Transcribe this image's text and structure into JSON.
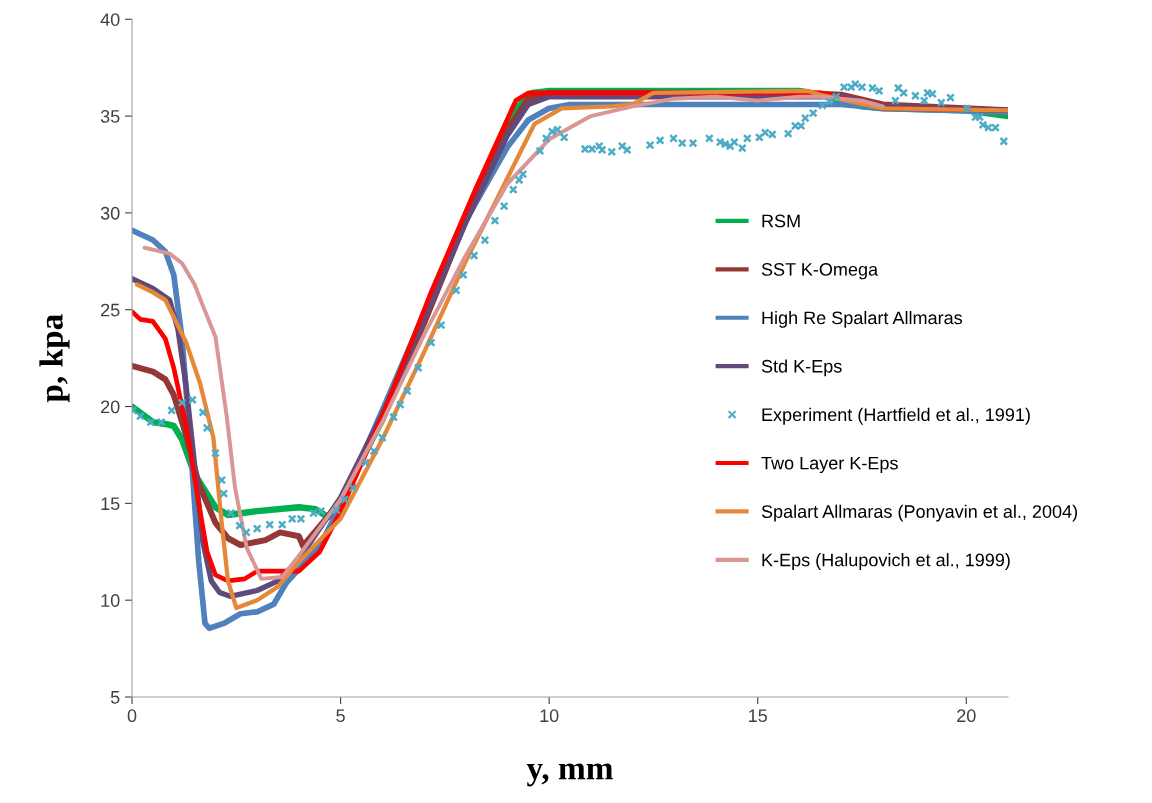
{
  "chart_data": {
    "type": "line",
    "xlabel": "y, mm",
    "ylabel": "p, kpa",
    "xlim": [
      0,
      21
    ],
    "ylim": [
      5,
      40
    ],
    "xticks": [
      0,
      5,
      10,
      15,
      20
    ],
    "yticks": [
      5,
      10,
      15,
      20,
      25,
      30,
      35,
      40
    ],
    "grid": false,
    "legend": "right",
    "marker": "none",
    "line_style": "solid",
    "series": [
      {
        "name": "RSM",
        "color": "#00b050",
        "x": [
          0,
          0.5,
          0.8,
          1.0,
          1.2,
          1.5,
          2.0,
          2.3,
          3.0,
          4.0,
          4.4,
          4.7,
          5,
          6,
          7,
          8,
          8.5,
          9,
          9.3,
          9.6,
          10,
          16,
          16.5,
          17.5,
          18,
          20,
          21
        ],
        "values": [
          20,
          19.2,
          19.1,
          19.0,
          18.3,
          16.5,
          14.8,
          14.4,
          14.6,
          14.8,
          14.7,
          14.3,
          15.2,
          19.3,
          24.5,
          29.8,
          32.3,
          34.6,
          35.6,
          36.2,
          36.3,
          36.3,
          36.1,
          35.5,
          35.4,
          35.3,
          35.0
        ]
      },
      {
        "name": "SST K-Omega",
        "color": "#953735",
        "x": [
          0,
          0.5,
          0.8,
          1.0,
          1.3,
          1.6,
          2.0,
          2.3,
          2.6,
          3.2,
          3.55,
          4.0,
          4.1,
          5,
          6,
          7,
          8,
          9,
          9.5,
          10,
          16,
          17,
          18,
          21
        ],
        "values": [
          22.1,
          21.8,
          21.4,
          20.6,
          18.5,
          16,
          14,
          13.2,
          12.85,
          13.1,
          13.5,
          13.3,
          12.8,
          15.1,
          19.4,
          24.3,
          29.6,
          34.3,
          35.9,
          36.2,
          36.2,
          36.1,
          35.6,
          35.3
        ]
      },
      {
        "name": "High Re Spalart Allmaras",
        "color": "#4f81bd",
        "x": [
          0,
          0.5,
          0.8,
          1.0,
          1.2,
          1.4,
          1.6,
          1.75,
          1.85,
          2.2,
          2.6,
          3.0,
          3.4,
          3.7,
          4.5,
          5,
          6,
          7,
          8,
          9,
          9.5,
          10,
          10.5,
          17,
          18,
          21
        ],
        "values": [
          29.1,
          28.6,
          28.0,
          26.8,
          23.5,
          18,
          12,
          8.8,
          8.55,
          8.8,
          9.3,
          9.4,
          9.8,
          10.9,
          12.8,
          14.9,
          19.8,
          24.8,
          29.6,
          33.4,
          34.8,
          35.4,
          35.6,
          35.6,
          35.4,
          35.2
        ]
      },
      {
        "name": "Std K-Eps",
        "color": "#604a7b",
        "x": [
          0,
          0.5,
          0.9,
          1.1,
          1.3,
          1.5,
          1.7,
          1.9,
          2.1,
          2.35,
          3.0,
          3.5,
          4.0,
          5,
          6,
          7,
          8,
          9,
          9.5,
          10,
          17,
          18,
          21
        ],
        "values": [
          26.6,
          26.1,
          25.5,
          24,
          21,
          17,
          13,
          11,
          10.4,
          10.2,
          10.5,
          11,
          12.1,
          15.3,
          19.6,
          24.5,
          29.5,
          34,
          35.6,
          36.0,
          36.0,
          35.5,
          35.3
        ]
      },
      {
        "name": "Experiment (Hartfield et al., 1991)",
        "type": "scatter",
        "marker": "cross",
        "color": "#4bacc6",
        "x": [
          0.02,
          0.2,
          0.45,
          0.7,
          0.95,
          1.2,
          1.45,
          1.7,
          1.8,
          2.0,
          2.15,
          2.2,
          2.37,
          2.58,
          2.74,
          3.0,
          3.3,
          3.6,
          3.84,
          4.05,
          4.35,
          4.53,
          4.9,
          5.1,
          5.3,
          5.6,
          5.8,
          6.0,
          6.27,
          6.43,
          6.6,
          6.86,
          7.17,
          7.41,
          7.77,
          7.94,
          8.2,
          8.46,
          8.7,
          8.92,
          9.14,
          9.28,
          9.37,
          9.78,
          9.93,
          10.07,
          10.2,
          10.36,
          10.86,
          11.03,
          11.2,
          11.27,
          11.5,
          11.75,
          11.87,
          12.42,
          12.66,
          12.98,
          13.19,
          13.45,
          13.84,
          14.1,
          14.22,
          14.34,
          14.44,
          14.63,
          14.75,
          15.04,
          15.18,
          15.35,
          15.73,
          15.9,
          16.04,
          16.14,
          16.33,
          16.55,
          16.72,
          16.88,
          17.07,
          17.24,
          17.34,
          17.5,
          17.75,
          17.91,
          18.3,
          18.37,
          18.5,
          18.78,
          18.99,
          19.07,
          19.19,
          19.4,
          19.62,
          20.02,
          20.22,
          20.32,
          20.4,
          20.53,
          20.7,
          20.9
        ],
        "values": [
          19.8,
          19.5,
          19.2,
          19.2,
          19.8,
          20.2,
          20.35,
          19.7,
          18.9,
          17.6,
          16.2,
          15.5,
          14.5,
          13.85,
          13.5,
          13.7,
          13.9,
          13.9,
          14.2,
          14.2,
          14.5,
          14.6,
          14.65,
          15.2,
          15.8,
          17.1,
          17.7,
          18.4,
          19.46,
          20.1,
          20.8,
          22.0,
          23.3,
          24.2,
          26.0,
          26.8,
          27.8,
          28.6,
          29.6,
          30.35,
          31.2,
          31.7,
          32.0,
          33.2,
          33.85,
          34.2,
          34.3,
          33.9,
          33.3,
          33.3,
          33.45,
          33.25,
          33.15,
          33.45,
          33.25,
          33.5,
          33.75,
          33.85,
          33.6,
          33.6,
          33.85,
          33.65,
          33.55,
          33.45,
          33.65,
          33.35,
          33.85,
          33.9,
          34.15,
          34.05,
          34.1,
          34.5,
          34.5,
          34.9,
          35.15,
          35.55,
          35.75,
          36.0,
          36.5,
          36.5,
          36.65,
          36.5,
          36.45,
          36.3,
          35.8,
          36.45,
          36.2,
          36.05,
          35.8,
          36.2,
          36.15,
          35.7,
          35.95,
          35.4,
          34.95,
          34.95,
          34.55,
          34.4,
          34.4,
          33.7
        ]
      },
      {
        "name": "Two Layer K-Eps",
        "color": "#ff0000",
        "x": [
          0,
          0.2,
          0.5,
          0.8,
          1.0,
          1.3,
          1.6,
          1.8,
          2.0,
          2.3,
          2.7,
          3.0,
          4.0,
          4.5,
          5,
          6,
          7.15,
          8.25,
          9.2,
          9.5,
          10,
          16.5,
          18,
          21
        ],
        "values": [
          24.9,
          24.5,
          24.4,
          23.5,
          22,
          19,
          15,
          12.5,
          11.3,
          11.0,
          11.1,
          11.5,
          11.5,
          12.5,
          14.6,
          19.5,
          25.8,
          31.3,
          35.8,
          36.2,
          36.2,
          36.2,
          35.4,
          35.3
        ]
      },
      {
        "name": "Spalart Allmaras (Ponyavin et al., 2004)",
        "color": "#e6883a",
        "x": [
          0.12,
          0.5,
          0.8,
          1.3,
          1.63,
          1.95,
          2.15,
          2.3,
          2.5,
          3.0,
          3.5,
          4.0,
          5,
          6,
          7,
          8,
          9,
          9.65,
          10.3,
          11.5,
          12,
          12.5,
          16.2,
          16.5,
          18,
          21
        ],
        "values": [
          26.3,
          25.9,
          25.5,
          23.3,
          21.2,
          18.4,
          14,
          11,
          9.6,
          10.0,
          10.7,
          12,
          14.2,
          18.3,
          22.8,
          27.5,
          31.8,
          34.6,
          35.4,
          35.5,
          35.6,
          36.2,
          36.3,
          36.1,
          35.4,
          35.3
        ]
      },
      {
        "name": "K-Eps (Halupovich et al., 1999)",
        "color": "#d99694",
        "x": [
          0.3,
          0.7,
          0.9,
          1.2,
          1.5,
          1.7,
          2.0,
          2.27,
          2.47,
          2.75,
          3.1,
          3.6,
          4.0,
          5,
          6,
          7,
          8,
          9,
          10,
          11,
          12,
          13,
          14,
          15,
          16,
          16.5,
          17.5,
          18
        ],
        "values": [
          28.2,
          28.0,
          27.9,
          27.4,
          26.3,
          25.2,
          23.6,
          19.5,
          15.8,
          12.7,
          11.1,
          11.2,
          12.3,
          15.2,
          19.2,
          23.7,
          27.8,
          31.5,
          33.8,
          35.0,
          35.5,
          35.9,
          36.0,
          35.8,
          36.0,
          36.0,
          35.8,
          35.5
        ]
      }
    ]
  }
}
